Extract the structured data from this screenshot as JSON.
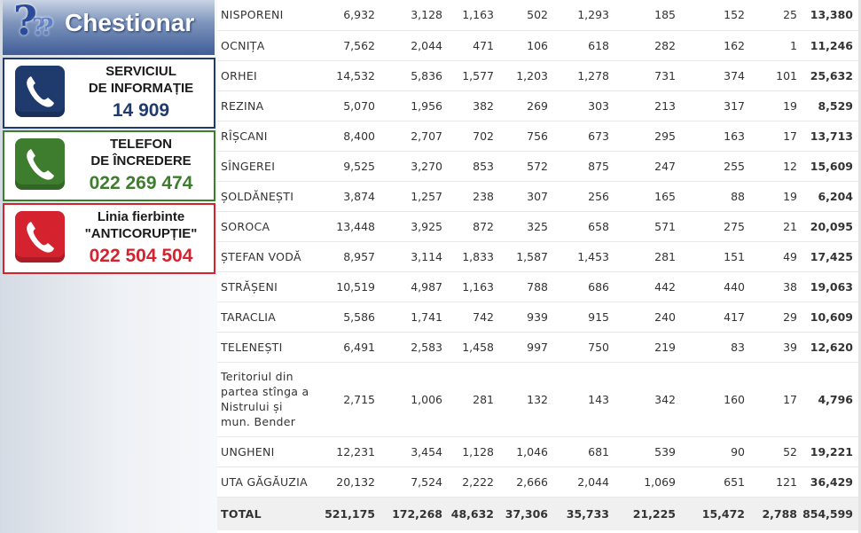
{
  "sidebar": {
    "banner_title": "Chestionar",
    "banner_icon": "question-marks-icon",
    "hotlines": [
      {
        "line1": "SERVICIUL",
        "line2": "DE INFORMAȚIE",
        "number": "14 909",
        "color": "#1f3b6e"
      },
      {
        "line1": "TELEFON",
        "line2": "DE ÎNCREDERE",
        "number": "022 269 474",
        "color": "#3e7d2e"
      },
      {
        "line1": "Linia fierbinte",
        "line2": "\"ANTICORUPȚIE\"",
        "number": "022 504 504",
        "color": "#d4222e"
      }
    ]
  },
  "table": {
    "rows": [
      {
        "name": "NISPORENI",
        "values": [
          "6,932",
          "3,128",
          "1,163",
          "502",
          "1,293",
          "185",
          "152",
          "25"
        ],
        "total": "13,380"
      },
      {
        "name": "OCNIȚA",
        "values": [
          "7,562",
          "2,044",
          "471",
          "106",
          "618",
          "282",
          "162",
          "1"
        ],
        "total": "11,246"
      },
      {
        "name": "ORHEI",
        "values": [
          "14,532",
          "5,836",
          "1,577",
          "1,203",
          "1,278",
          "731",
          "374",
          "101"
        ],
        "total": "25,632"
      },
      {
        "name": "REZINA",
        "values": [
          "5,070",
          "1,956",
          "382",
          "269",
          "303",
          "213",
          "317",
          "19"
        ],
        "total": "8,529"
      },
      {
        "name": "RÎȘCANI",
        "values": [
          "8,400",
          "2,707",
          "702",
          "756",
          "673",
          "295",
          "163",
          "17"
        ],
        "total": "13,713"
      },
      {
        "name": "SÎNGEREI",
        "values": [
          "9,525",
          "3,270",
          "853",
          "572",
          "875",
          "247",
          "255",
          "12"
        ],
        "total": "15,609"
      },
      {
        "name": "ȘOLDĂNEȘTI",
        "values": [
          "3,874",
          "1,257",
          "238",
          "307",
          "256",
          "165",
          "88",
          "19"
        ],
        "total": "6,204"
      },
      {
        "name": "SOROCA",
        "values": [
          "13,448",
          "3,925",
          "872",
          "325",
          "658",
          "571",
          "275",
          "21"
        ],
        "total": "20,095"
      },
      {
        "name": "ȘTEFAN VODĂ",
        "values": [
          "8,957",
          "3,114",
          "1,833",
          "1,587",
          "1,453",
          "281",
          "151",
          "49"
        ],
        "total": "17,425"
      },
      {
        "name": "STRĂȘENI",
        "values": [
          "10,519",
          "4,987",
          "1,163",
          "788",
          "686",
          "442",
          "440",
          "38"
        ],
        "total": "19,063"
      },
      {
        "name": "TARACLIA",
        "values": [
          "5,586",
          "1,741",
          "742",
          "939",
          "915",
          "240",
          "417",
          "29"
        ],
        "total": "10,609"
      },
      {
        "name": "TELENEȘTI",
        "values": [
          "6,491",
          "2,583",
          "1,458",
          "997",
          "750",
          "219",
          "83",
          "39"
        ],
        "total": "12,620"
      },
      {
        "name": "Teritoriul din partea stînga a Nistrului și mun. Bender",
        "values": [
          "2,715",
          "1,006",
          "281",
          "132",
          "143",
          "342",
          "160",
          "17"
        ],
        "total": "4,796",
        "tall": true
      },
      {
        "name": "UNGHENI",
        "values": [
          "12,231",
          "3,454",
          "1,128",
          "1,046",
          "681",
          "539",
          "90",
          "52"
        ],
        "total": "19,221"
      },
      {
        "name": "UTA GĂGĂUZIA",
        "values": [
          "20,132",
          "7,524",
          "2,222",
          "2,666",
          "2,044",
          "1,069",
          "651",
          "121"
        ],
        "total": "36,429"
      }
    ],
    "total_row": {
      "name": "TOTAL",
      "values": [
        "521,175",
        "172,268",
        "48,632",
        "37,306",
        "35,733",
        "21,225",
        "15,472",
        "2,788"
      ],
      "total": "854,599"
    }
  }
}
